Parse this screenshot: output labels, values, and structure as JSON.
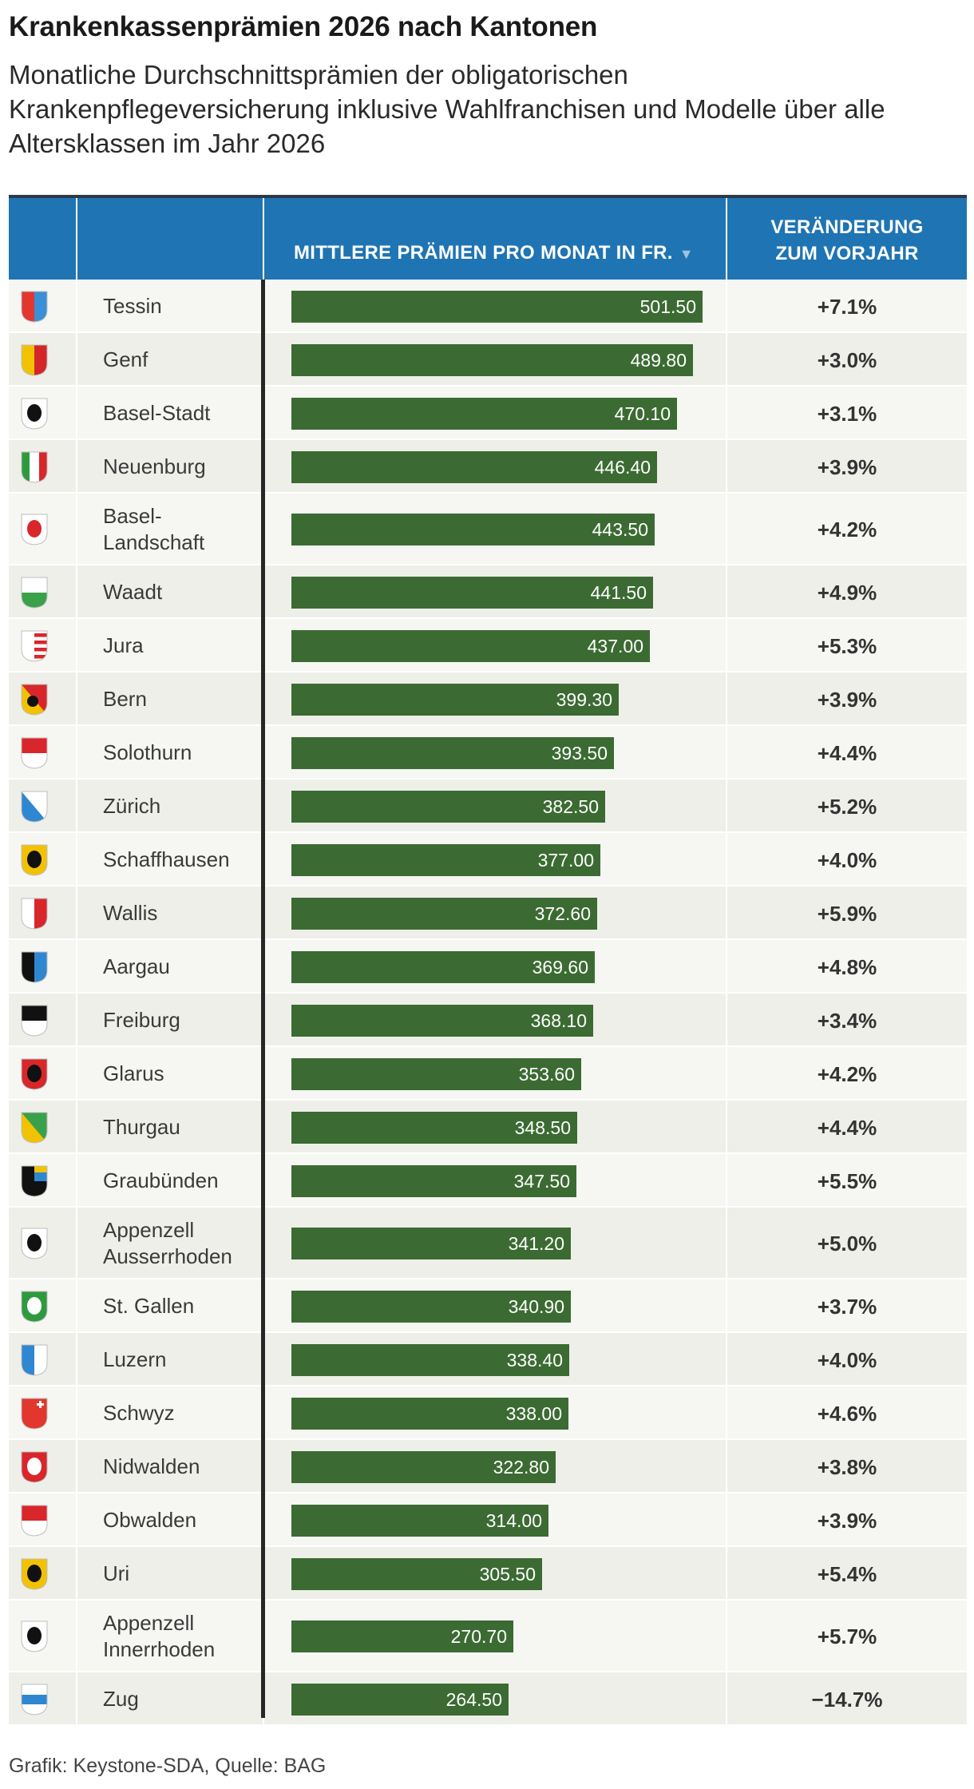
{
  "title": "Krankenkassenprämien 2026 nach Kantonen",
  "subtitle": "Monatliche Durchschnittsprämien der obligatorischen Krankenpflegeversicherung inklusive Wahlfranchisen und Modelle über alle Altersklassen im Jahr 2026",
  "table": {
    "premium_header": "MITTLERE PRÄMIEN PRO MONAT IN FR.",
    "sort_icon": "sort-desc-triangle-icon",
    "change_header_line1": "VERÄNDERUNG",
    "change_header_line2": "ZUM VORJAHR"
  },
  "footer": "Grafik: Keystone-SDA, Quelle: BAG",
  "colors": {
    "header": "#1f74b3",
    "bar": "#3b6b32",
    "row_a": "#f6f6f3",
    "row_b": "#efefea"
  },
  "chart_data": {
    "type": "bar",
    "orientation": "horizontal",
    "title": "Krankenkassenprämien 2026 nach Kantonen",
    "xlim": [
      0,
      501.5
    ],
    "categories": [
      "Tessin",
      "Genf",
      "Basel-Stadt",
      "Neuenburg",
      "Basel-Landschaft",
      "Waadt",
      "Jura",
      "Bern",
      "Solothurn",
      "Zürich",
      "Schaffhausen",
      "Wallis",
      "Aargau",
      "Freiburg",
      "Glarus",
      "Thurgau",
      "Graubünden",
      "Appenzell Ausserrhoden",
      "St. Gallen",
      "Luzern",
      "Schwyz",
      "Nidwalden",
      "Obwalden",
      "Uri",
      "Appenzell Innerrhoden",
      "Zug"
    ],
    "rows": [
      {
        "name_lines": [
          "Tessin"
        ],
        "value": 501.5,
        "label": "501.50",
        "change": "+7.1%",
        "flag": "flag-tessin-icon",
        "flag_colors": [
          "#e2372e",
          "#3a8fd6"
        ],
        "style": "perpale"
      },
      {
        "name_lines": [
          "Genf"
        ],
        "value": 489.8,
        "label": "489.80",
        "change": "+3.0%",
        "flag": "flag-genf-icon",
        "flag_colors": [
          "#f2c200",
          "#d4262a"
        ],
        "style": "perpale"
      },
      {
        "name_lines": [
          "Basel-Stadt"
        ],
        "value": 470.1,
        "label": "470.10",
        "change": "+3.1%",
        "flag": "flag-basel-stadt-icon",
        "flag_colors": [
          "#ffffff",
          "#111111"
        ],
        "style": "charge"
      },
      {
        "name_lines": [
          "Neuenburg"
        ],
        "value": 446.4,
        "label": "446.40",
        "change": "+3.9%",
        "flag": "flag-neuenburg-icon",
        "flag_colors": [
          "#2e9a3e",
          "#ffffff",
          "#d9262a"
        ],
        "style": "tierce"
      },
      {
        "name_lines": [
          "Basel-",
          "Landschaft"
        ],
        "value": 443.5,
        "label": "443.50",
        "change": "+4.2%",
        "flag": "flag-basel-landschaft-icon",
        "flag_colors": [
          "#ffffff",
          "#d9262a"
        ],
        "style": "charge"
      },
      {
        "name_lines": [
          "Waadt"
        ],
        "value": 441.5,
        "label": "441.50",
        "change": "+4.9%",
        "flag": "flag-waadt-icon",
        "flag_colors": [
          "#ffffff",
          "#39a14a"
        ],
        "style": "perfess"
      },
      {
        "name_lines": [
          "Jura"
        ],
        "value": 437.0,
        "label": "437.00",
        "change": "+5.3%",
        "flag": "flag-jura-icon",
        "flag_colors": [
          "#ffffff",
          "#d9262a"
        ],
        "style": "stripes"
      },
      {
        "name_lines": [
          "Bern"
        ],
        "value": 399.3,
        "label": "399.30",
        "change": "+3.9%",
        "flag": "flag-bern-icon",
        "flag_colors": [
          "#d9262a",
          "#f2c200",
          "#111111"
        ],
        "style": "bend"
      },
      {
        "name_lines": [
          "Solothurn"
        ],
        "value": 393.5,
        "label": "393.50",
        "change": "+4.4%",
        "flag": "flag-solothurn-icon",
        "flag_colors": [
          "#d9262a",
          "#ffffff"
        ],
        "style": "perfess"
      },
      {
        "name_lines": [
          "Zürich"
        ],
        "value": 382.5,
        "label": "382.50",
        "change": "+5.2%",
        "flag": "flag-zuerich-icon",
        "flag_colors": [
          "#ffffff",
          "#2f86d1"
        ],
        "style": "bend"
      },
      {
        "name_lines": [
          "Schaffhausen"
        ],
        "value": 377.0,
        "label": "377.00",
        "change": "+4.0%",
        "flag": "flag-schaffhausen-icon",
        "flag_colors": [
          "#f2c200",
          "#111111"
        ],
        "style": "charge"
      },
      {
        "name_lines": [
          "Wallis"
        ],
        "value": 372.6,
        "label": "372.60",
        "change": "+5.9%",
        "flag": "flag-wallis-icon",
        "flag_colors": [
          "#ffffff",
          "#d9262a"
        ],
        "style": "perpale"
      },
      {
        "name_lines": [
          "Aargau"
        ],
        "value": 369.6,
        "label": "369.60",
        "change": "+4.8%",
        "flag": "flag-aargau-icon",
        "flag_colors": [
          "#111111",
          "#2f86d1"
        ],
        "style": "perpale"
      },
      {
        "name_lines": [
          "Freiburg"
        ],
        "value": 368.1,
        "label": "368.10",
        "change": "+3.4%",
        "flag": "flag-freiburg-icon",
        "flag_colors": [
          "#111111",
          "#ffffff"
        ],
        "style": "perfess"
      },
      {
        "name_lines": [
          "Glarus"
        ],
        "value": 353.6,
        "label": "353.60",
        "change": "+4.2%",
        "flag": "flag-glarus-icon",
        "flag_colors": [
          "#d9262a",
          "#111111"
        ],
        "style": "charge"
      },
      {
        "name_lines": [
          "Thurgau"
        ],
        "value": 348.5,
        "label": "348.50",
        "change": "+4.4%",
        "flag": "flag-thurgau-icon",
        "flag_colors": [
          "#39a14a",
          "#f2c200"
        ],
        "style": "bend"
      },
      {
        "name_lines": [
          "Graubünden"
        ],
        "value": 347.5,
        "label": "347.50",
        "change": "+5.5%",
        "flag": "flag-graubuenden-icon",
        "flag_colors": [
          "#111111",
          "#2f86d1",
          "#f2c200"
        ],
        "style": "quarters"
      },
      {
        "name_lines": [
          "Appenzell",
          "Ausserrhoden"
        ],
        "value": 341.2,
        "label": "341.20",
        "change": "+5.0%",
        "flag": "flag-appenzell-ausserrhoden-icon",
        "flag_colors": [
          "#ffffff",
          "#111111"
        ],
        "style": "charge"
      },
      {
        "name_lines": [
          "St. Gallen"
        ],
        "value": 340.9,
        "label": "340.90",
        "change": "+3.7%",
        "flag": "flag-st-gallen-icon",
        "flag_colors": [
          "#2e9a3e",
          "#ffffff"
        ],
        "style": "charge"
      },
      {
        "name_lines": [
          "Luzern"
        ],
        "value": 338.4,
        "label": "338.40",
        "change": "+4.0%",
        "flag": "flag-luzern-icon",
        "flag_colors": [
          "#2f86d1",
          "#ffffff"
        ],
        "style": "perpale"
      },
      {
        "name_lines": [
          "Schwyz"
        ],
        "value": 338.0,
        "label": "338.00",
        "change": "+4.6%",
        "flag": "flag-schwyz-icon",
        "flag_colors": [
          "#e2372e",
          "#ffffff"
        ],
        "style": "cross"
      },
      {
        "name_lines": [
          "Nidwalden"
        ],
        "value": 322.8,
        "label": "322.80",
        "change": "+3.8%",
        "flag": "flag-nidwalden-icon",
        "flag_colors": [
          "#d9262a",
          "#ffffff"
        ],
        "style": "charge"
      },
      {
        "name_lines": [
          "Obwalden"
        ],
        "value": 314.0,
        "label": "314.00",
        "change": "+3.9%",
        "flag": "flag-obwalden-icon",
        "flag_colors": [
          "#d9262a",
          "#ffffff"
        ],
        "style": "perfess"
      },
      {
        "name_lines": [
          "Uri"
        ],
        "value": 305.5,
        "label": "305.50",
        "change": "+5.4%",
        "flag": "flag-uri-icon",
        "flag_colors": [
          "#f2c200",
          "#111111"
        ],
        "style": "charge"
      },
      {
        "name_lines": [
          "Appenzell",
          "Innerrhoden"
        ],
        "value": 270.7,
        "label": "270.70",
        "change": "+5.7%",
        "flag": "flag-appenzell-innerrhoden-icon",
        "flag_colors": [
          "#ffffff",
          "#111111"
        ],
        "style": "charge"
      },
      {
        "name_lines": [
          "Zug"
        ],
        "value": 264.5,
        "label": "264.50",
        "change": "−14.7%",
        "flag": "flag-zug-icon",
        "flag_colors": [
          "#ffffff",
          "#2f86d1"
        ],
        "style": "fess"
      }
    ]
  }
}
